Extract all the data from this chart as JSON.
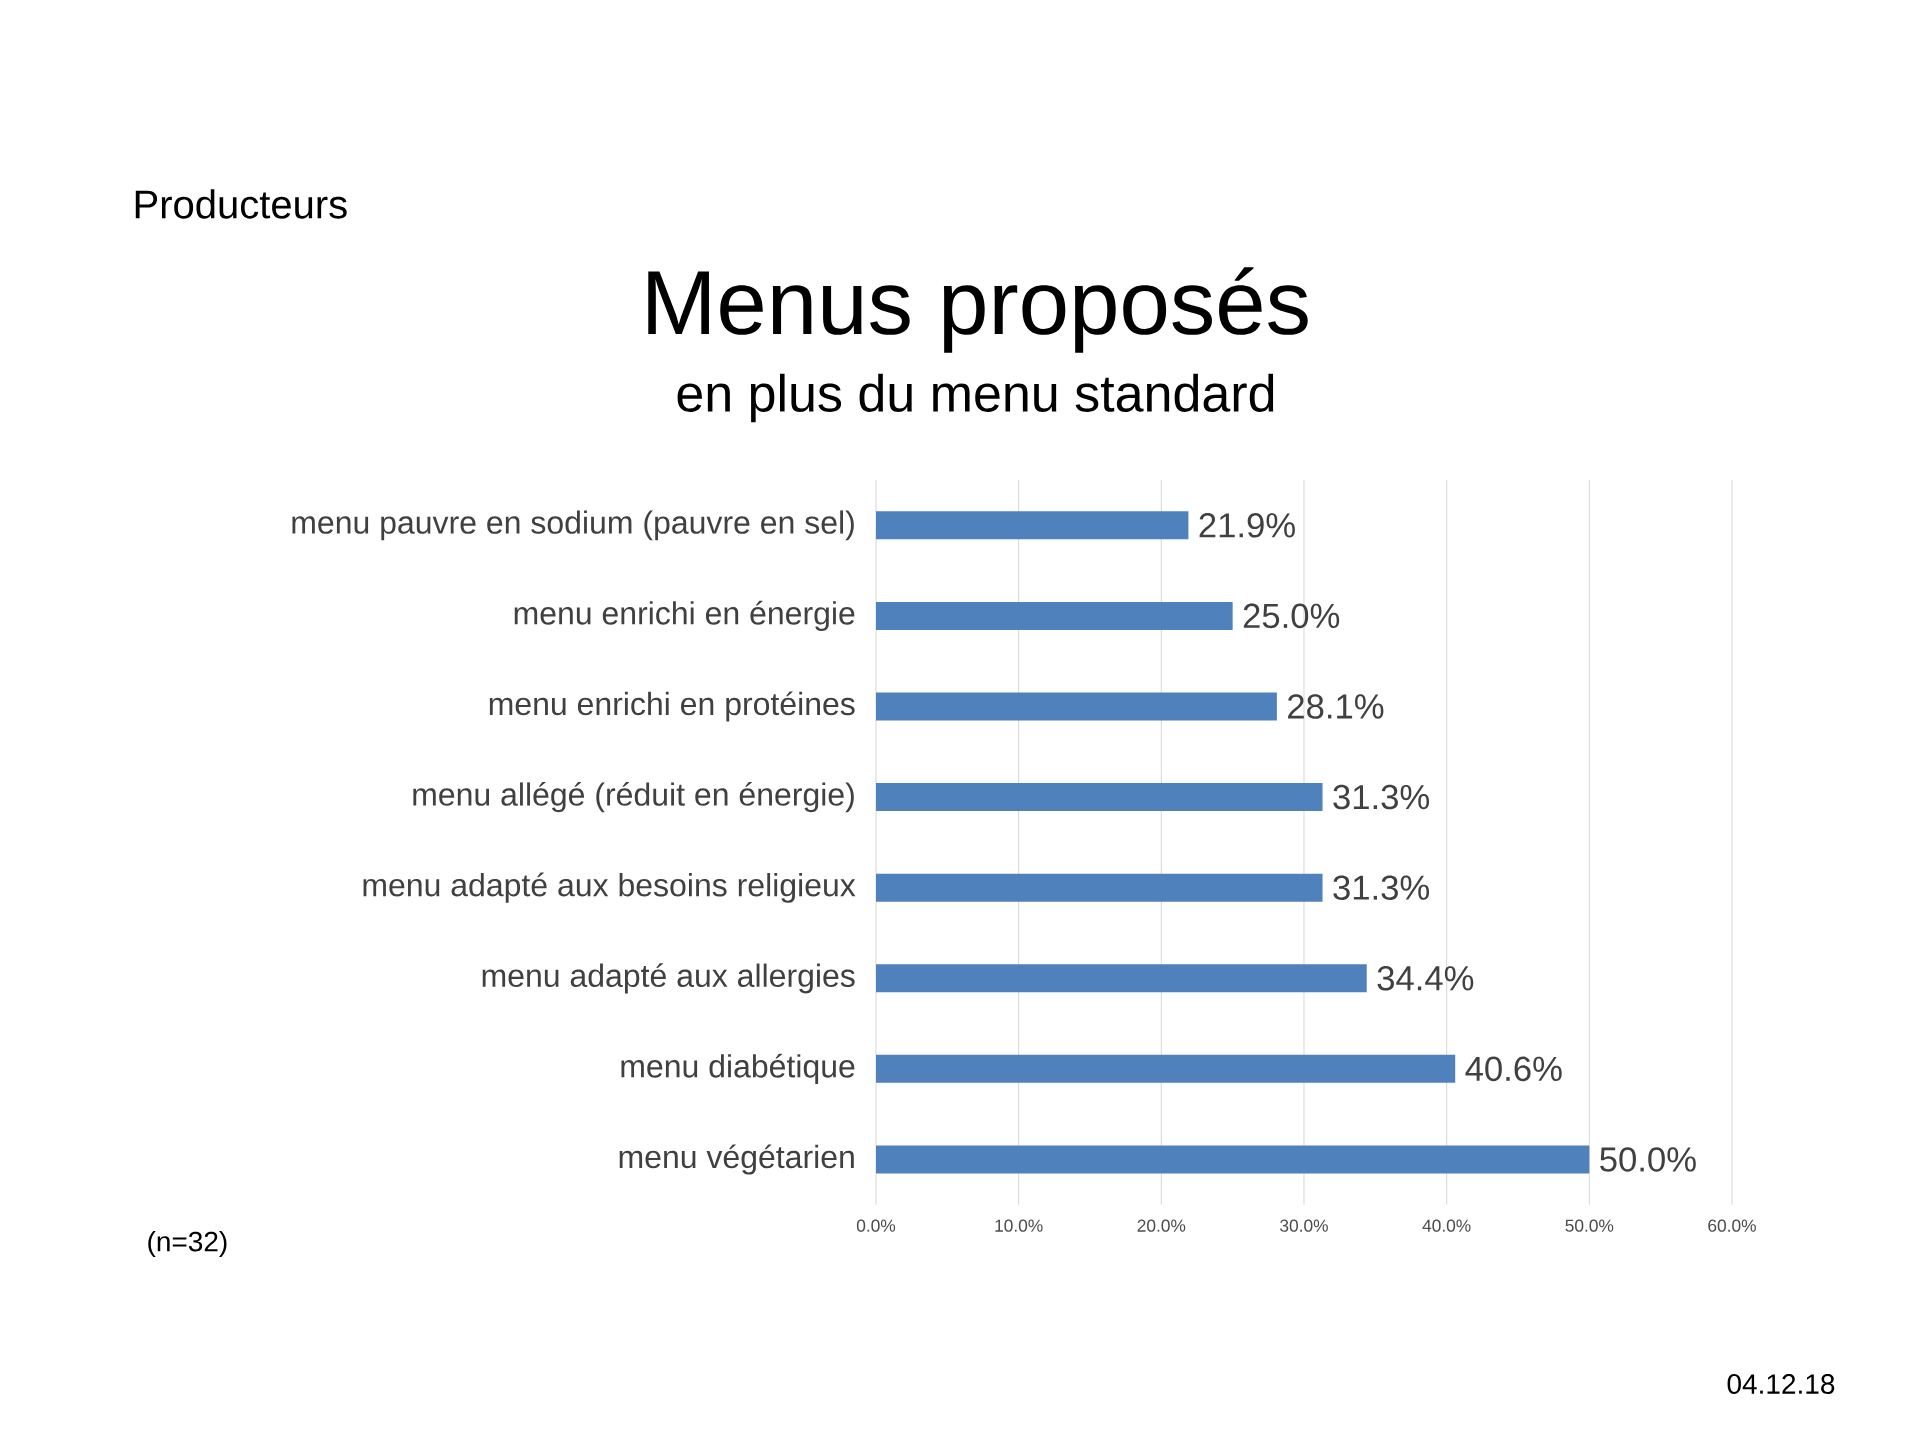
{
  "chart_data": {
    "type": "bar",
    "orientation": "horizontal",
    "title": "Menus proposés",
    "subtitle": "en plus du menu standard",
    "categories": [
      "menu pauvre en sodium (pauvre en sel)",
      "menu enrichi en énergie",
      "menu enrichi en protéines",
      "menu allégé (réduit en énergie)",
      "menu adapté aux besoins religieux",
      "menu adapté aux allergies",
      "menu diabétique",
      "menu végétarien"
    ],
    "values": [
      21.9,
      25.0,
      28.1,
      31.3,
      31.3,
      34.4,
      40.6,
      50.0
    ],
    "value_labels": [
      "21.9%",
      "25.0%",
      "28.1%",
      "31.3%",
      "31.3%",
      "34.4%",
      "40.6%",
      "50.0%"
    ],
    "color": "#4f81bd",
    "xlim": [
      0,
      60
    ],
    "xticks": [
      {
        "value": 0,
        "label": "0.0%"
      },
      {
        "value": 10,
        "label": "10.0%"
      },
      {
        "value": 20,
        "label": "20.0%"
      },
      {
        "value": 30,
        "label": "30.0%"
      },
      {
        "value": 40,
        "label": "40.0%"
      },
      {
        "value": 50,
        "label": "50.0%"
      },
      {
        "value": 60,
        "label": "60.0%"
      }
    ],
    "grid": "x",
    "annotations": [
      "Producteurs",
      "(n=32)",
      "04.12.18"
    ]
  }
}
